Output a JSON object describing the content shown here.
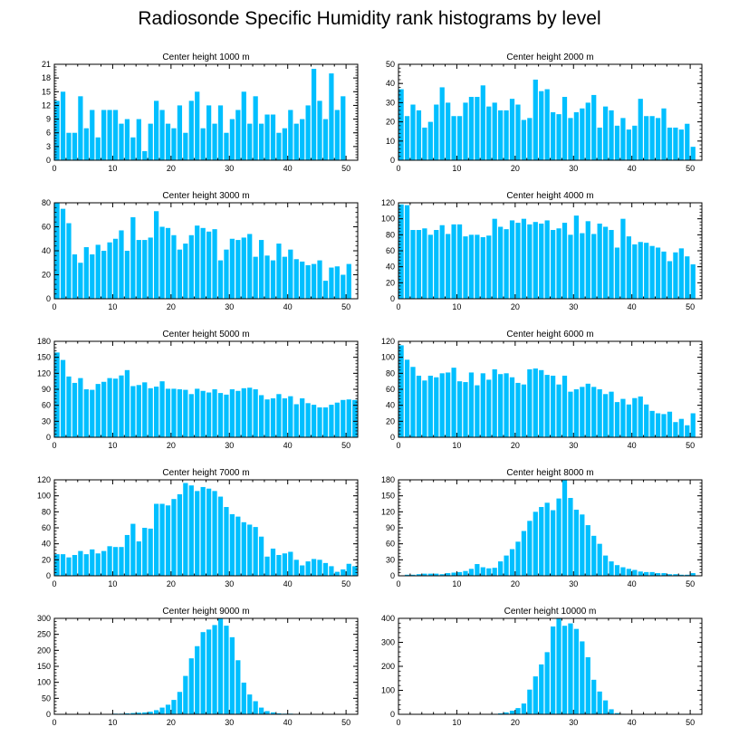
{
  "title": "Radiosonde Specific Humidity rank histograms by level",
  "bar_color": "#00bfff",
  "chart_data": [
    {
      "type": "bar",
      "title": "Center height 1000 m",
      "x": [
        0,
        1,
        2,
        3,
        4,
        5,
        6,
        7,
        8,
        9,
        10,
        11,
        12,
        13,
        14,
        15,
        16,
        17,
        18,
        19,
        20,
        21,
        22,
        23,
        24,
        25,
        26,
        27,
        28,
        29,
        30,
        31,
        32,
        33,
        34,
        35,
        36,
        37,
        38,
        39,
        40,
        41,
        42,
        43,
        44,
        45,
        46,
        47,
        48,
        49,
        50,
        51
      ],
      "values": [
        13,
        15,
        6,
        6,
        14,
        7,
        11,
        5,
        11,
        11,
        11,
        8,
        9,
        5,
        9,
        2,
        8,
        13,
        11,
        8,
        7,
        12,
        6,
        13,
        15,
        7,
        12,
        8,
        12,
        6,
        9,
        11,
        15,
        8,
        14,
        8,
        10,
        10,
        6,
        7,
        11,
        8,
        9,
        12,
        20,
        13,
        9,
        19,
        11,
        14,
        0,
        0
      ],
      "ylim": [
        0,
        21
      ],
      "yticks": [
        0,
        3,
        6,
        9,
        12,
        15,
        18,
        21
      ],
      "xlim": [
        0,
        52
      ],
      "xticks": [
        0,
        10,
        20,
        30,
        40,
        50
      ]
    },
    {
      "type": "bar",
      "title": "Center height 2000 m",
      "x": [
        0,
        1,
        2,
        3,
        4,
        5,
        6,
        7,
        8,
        9,
        10,
        11,
        12,
        13,
        14,
        15,
        16,
        17,
        18,
        19,
        20,
        21,
        22,
        23,
        24,
        25,
        26,
        27,
        28,
        29,
        30,
        31,
        32,
        33,
        34,
        35,
        36,
        37,
        38,
        39,
        40,
        41,
        42,
        43,
        44,
        45,
        46,
        47,
        48,
        49,
        50,
        51
      ],
      "values": [
        37,
        23,
        29,
        26,
        17,
        20,
        29,
        38,
        30,
        23,
        23,
        30,
        33,
        33,
        39,
        28,
        30,
        26,
        26,
        32,
        29,
        21,
        22,
        42,
        36,
        37,
        25,
        24,
        33,
        22,
        25,
        27,
        30,
        34,
        17,
        28,
        26,
        18,
        22,
        16,
        18,
        32,
        23,
        23,
        22,
        27,
        17,
        17,
        16,
        19,
        7,
        0
      ],
      "ylim": [
        0,
        50
      ],
      "yticks": [
        0,
        10,
        20,
        30,
        40,
        50
      ],
      "xlim": [
        0,
        52
      ],
      "xticks": [
        0,
        10,
        20,
        30,
        40,
        50
      ]
    },
    {
      "type": "bar",
      "title": "Center height 3000 m",
      "x": [
        0,
        1,
        2,
        3,
        4,
        5,
        6,
        7,
        8,
        9,
        10,
        11,
        12,
        13,
        14,
        15,
        16,
        17,
        18,
        19,
        20,
        21,
        22,
        23,
        24,
        25,
        26,
        27,
        28,
        29,
        30,
        31,
        32,
        33,
        34,
        35,
        36,
        37,
        38,
        39,
        40,
        41,
        42,
        43,
        44,
        45,
        46,
        47,
        48,
        49,
        50,
        51
      ],
      "values": [
        80,
        75,
        63,
        37,
        30,
        43,
        37,
        45,
        40,
        47,
        50,
        57,
        40,
        68,
        49,
        49,
        51,
        73,
        60,
        59,
        53,
        41,
        46,
        53,
        61,
        59,
        56,
        58,
        32,
        41,
        50,
        49,
        51,
        54,
        35,
        49,
        36,
        32,
        46,
        35,
        41,
        33,
        31,
        28,
        29,
        32,
        15,
        26,
        27,
        20,
        29,
        0
      ],
      "ylim": [
        0,
        80
      ],
      "yticks": [
        0,
        20,
        40,
        60,
        80
      ],
      "xlim": [
        0,
        52
      ],
      "xticks": [
        0,
        10,
        20,
        30,
        40,
        50
      ]
    },
    {
      "type": "bar",
      "title": "Center height 4000 m",
      "x": [
        0,
        1,
        2,
        3,
        4,
        5,
        6,
        7,
        8,
        9,
        10,
        11,
        12,
        13,
        14,
        15,
        16,
        17,
        18,
        19,
        20,
        21,
        22,
        23,
        24,
        25,
        26,
        27,
        28,
        29,
        30,
        31,
        32,
        33,
        34,
        35,
        36,
        37,
        38,
        39,
        40,
        41,
        42,
        43,
        44,
        45,
        46,
        47,
        48,
        49,
        50,
        51
      ],
      "values": [
        118,
        117,
        86,
        86,
        88,
        80,
        86,
        92,
        81,
        93,
        93,
        78,
        80,
        80,
        77,
        79,
        100,
        90,
        87,
        98,
        95,
        100,
        93,
        96,
        94,
        98,
        86,
        88,
        95,
        80,
        104,
        82,
        97,
        81,
        94,
        90,
        86,
        64,
        100,
        78,
        68,
        71,
        70,
        66,
        64,
        59,
        47,
        58,
        63,
        53,
        43,
        0
      ],
      "ylim": [
        0,
        120
      ],
      "yticks": [
        0,
        20,
        40,
        60,
        80,
        100,
        120
      ],
      "xlim": [
        0,
        52
      ],
      "xticks": [
        0,
        10,
        20,
        30,
        40,
        50
      ]
    },
    {
      "type": "bar",
      "title": "Center height 5000 m",
      "x": [
        0,
        1,
        2,
        3,
        4,
        5,
        6,
        7,
        8,
        9,
        10,
        11,
        12,
        13,
        14,
        15,
        16,
        17,
        18,
        19,
        20,
        21,
        22,
        23,
        24,
        25,
        26,
        27,
        28,
        29,
        30,
        31,
        32,
        33,
        34,
        35,
        36,
        37,
        38,
        39,
        40,
        41,
        42,
        43,
        44,
        45,
        46,
        47,
        48,
        49,
        50,
        51
      ],
      "values": [
        159,
        145,
        114,
        102,
        111,
        90,
        89,
        100,
        104,
        111,
        110,
        116,
        126,
        96,
        98,
        103,
        92,
        95,
        105,
        91,
        91,
        90,
        89,
        81,
        91,
        87,
        84,
        90,
        83,
        80,
        90,
        87,
        92,
        93,
        90,
        79,
        71,
        73,
        81,
        73,
        77,
        62,
        73,
        64,
        61,
        56,
        56,
        61,
        65,
        70,
        71,
        70
      ],
      "ylim": [
        0,
        180
      ],
      "yticks": [
        0,
        30,
        60,
        90,
        120,
        150,
        180
      ],
      "xlim": [
        0,
        52
      ],
      "xticks": [
        0,
        10,
        20,
        30,
        40,
        50
      ]
    },
    {
      "type": "bar",
      "title": "Center height 6000 m",
      "x": [
        0,
        1,
        2,
        3,
        4,
        5,
        6,
        7,
        8,
        9,
        10,
        11,
        12,
        13,
        14,
        15,
        16,
        17,
        18,
        19,
        20,
        21,
        22,
        23,
        24,
        25,
        26,
        27,
        28,
        29,
        30,
        31,
        32,
        33,
        34,
        35,
        36,
        37,
        38,
        39,
        40,
        41,
        42,
        43,
        44,
        45,
        46,
        47,
        48,
        49,
        50,
        51
      ],
      "values": [
        115,
        97,
        88,
        77,
        71,
        77,
        75,
        80,
        81,
        87,
        70,
        69,
        81,
        65,
        80,
        72,
        85,
        79,
        80,
        75,
        68,
        66,
        85,
        86,
        84,
        78,
        77,
        66,
        77,
        57,
        60,
        63,
        67,
        63,
        60,
        54,
        57,
        44,
        48,
        41,
        49,
        51,
        41,
        33,
        30,
        29,
        32,
        19,
        23,
        15,
        30,
        0
      ],
      "ylim": [
        0,
        120
      ],
      "yticks": [
        0,
        20,
        40,
        60,
        80,
        100,
        120
      ],
      "xlim": [
        0,
        52
      ],
      "xticks": [
        0,
        10,
        20,
        30,
        40,
        50
      ]
    },
    {
      "type": "bar",
      "title": "Center height 7000 m",
      "x": [
        0,
        1,
        2,
        3,
        4,
        5,
        6,
        7,
        8,
        9,
        10,
        11,
        12,
        13,
        14,
        15,
        16,
        17,
        18,
        19,
        20,
        21,
        22,
        23,
        24,
        25,
        26,
        27,
        28,
        29,
        30,
        31,
        32,
        33,
        34,
        35,
        36,
        37,
        38,
        39,
        40,
        41,
        42,
        43,
        44,
        45,
        46,
        47,
        48,
        49,
        50,
        51
      ],
      "values": [
        27,
        27,
        23,
        26,
        31,
        27,
        33,
        28,
        31,
        37,
        36,
        36,
        51,
        65,
        43,
        60,
        59,
        90,
        90,
        88,
        96,
        102,
        116,
        113,
        106,
        111,
        109,
        106,
        99,
        86,
        77,
        74,
        67,
        64,
        61,
        49,
        24,
        34,
        26,
        28,
        30,
        20,
        13,
        18,
        21,
        20,
        16,
        12,
        5,
        8,
        15,
        12
      ],
      "ylim": [
        0,
        120
      ],
      "yticks": [
        0,
        20,
        40,
        60,
        80,
        100,
        120
      ],
      "xlim": [
        0,
        52
      ],
      "xticks": [
        0,
        10,
        20,
        30,
        40,
        50
      ]
    },
    {
      "type": "bar",
      "title": "Center height 8000 m",
      "x": [
        0,
        1,
        2,
        3,
        4,
        5,
        6,
        7,
        8,
        9,
        10,
        11,
        12,
        13,
        14,
        15,
        16,
        17,
        18,
        19,
        20,
        21,
        22,
        23,
        24,
        25,
        26,
        27,
        28,
        29,
        30,
        31,
        32,
        33,
        34,
        35,
        36,
        37,
        38,
        39,
        40,
        41,
        42,
        43,
        44,
        45,
        46,
        47,
        48,
        49,
        50,
        51
      ],
      "values": [
        0,
        2,
        2,
        3,
        4,
        4,
        4,
        3,
        5,
        6,
        7,
        9,
        13,
        22,
        16,
        14,
        15,
        27,
        38,
        50,
        64,
        84,
        103,
        120,
        129,
        137,
        123,
        145,
        180,
        146,
        124,
        115,
        95,
        75,
        60,
        38,
        27,
        20,
        16,
        13,
        11,
        8,
        7,
        7,
        5,
        5,
        3,
        3,
        2,
        2,
        5,
        0
      ],
      "ylim": [
        0,
        180
      ],
      "yticks": [
        0,
        30,
        60,
        90,
        120,
        150,
        180
      ],
      "xlim": [
        0,
        52
      ],
      "xticks": [
        0,
        10,
        20,
        30,
        40,
        50
      ]
    },
    {
      "type": "bar",
      "title": "Center height 9000 m",
      "x": [
        0,
        1,
        2,
        3,
        4,
        5,
        6,
        7,
        8,
        9,
        10,
        11,
        12,
        13,
        14,
        15,
        16,
        17,
        18,
        19,
        20,
        21,
        22,
        23,
        24,
        25,
        26,
        27,
        28,
        29,
        30,
        31,
        32,
        33,
        34,
        35,
        36,
        37,
        38,
        39,
        40,
        41,
        42,
        43,
        44,
        45,
        46,
        47,
        48,
        49,
        50,
        51
      ],
      "values": [
        0,
        0,
        0,
        0,
        0,
        0,
        0,
        0,
        0,
        1,
        2,
        2,
        3,
        4,
        5,
        6,
        8,
        13,
        21,
        30,
        45,
        70,
        120,
        175,
        213,
        257,
        265,
        279,
        300,
        277,
        241,
        169,
        99,
        62,
        41,
        21,
        10,
        6,
        3,
        2,
        2,
        1,
        1,
        1,
        0,
        0,
        1,
        0,
        0,
        0,
        0,
        0
      ],
      "ylim": [
        0,
        300
      ],
      "yticks": [
        0,
        50,
        100,
        150,
        200,
        250,
        300
      ],
      "xlim": [
        0,
        52
      ],
      "xticks": [
        0,
        10,
        20,
        30,
        40,
        50
      ]
    },
    {
      "type": "bar",
      "title": "Center height 10000 m",
      "x": [
        0,
        1,
        2,
        3,
        4,
        5,
        6,
        7,
        8,
        9,
        10,
        11,
        12,
        13,
        14,
        15,
        16,
        17,
        18,
        19,
        20,
        21,
        22,
        23,
        24,
        25,
        26,
        27,
        28,
        29,
        30,
        31,
        32,
        33,
        34,
        35,
        36,
        37,
        38,
        39,
        40,
        41,
        42,
        43,
        44,
        45,
        46,
        47,
        48,
        49,
        50,
        51
      ],
      "values": [
        0,
        0,
        0,
        0,
        0,
        0,
        0,
        0,
        0,
        0,
        0,
        0,
        0,
        0,
        0,
        1,
        2,
        4,
        8,
        15,
        26,
        45,
        103,
        158,
        208,
        259,
        366,
        398,
        369,
        379,
        356,
        304,
        238,
        144,
        95,
        58,
        21,
        5,
        2,
        1,
        1,
        1,
        0,
        0,
        0,
        0,
        0,
        0,
        0,
        0,
        0,
        0
      ],
      "ylim": [
        0,
        400
      ],
      "yticks": [
        0,
        100,
        200,
        300,
        400
      ],
      "xlim": [
        0,
        52
      ],
      "xticks": [
        0,
        10,
        20,
        30,
        40,
        50
      ]
    }
  ]
}
